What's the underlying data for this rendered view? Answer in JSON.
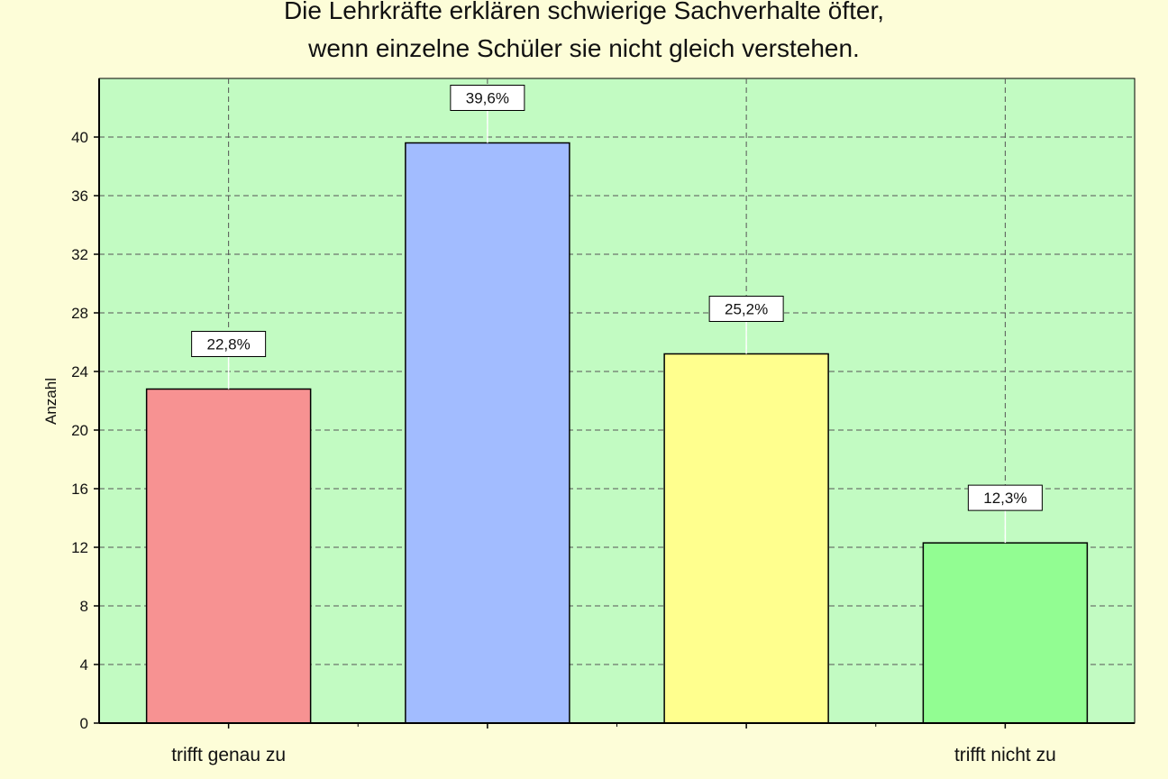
{
  "colors": {
    "page_background": "#fdfdd8",
    "plot_background": "#c2fbc2",
    "grid": "#555555",
    "axis": "#000000"
  },
  "chart_data": {
    "type": "bar",
    "title": [
      "Die Lehrkräfte erklären schwierige Sachverhalte öfter,",
      "wenn einzelne Schüler sie nicht gleich verstehen."
    ],
    "xlabel": "",
    "ylabel": "Anzahl",
    "ylim": [
      0,
      44
    ],
    "yticks": [
      0,
      4,
      8,
      12,
      16,
      20,
      24,
      28,
      32,
      36,
      40
    ],
    "grid": true,
    "categories": [
      "trifft genau zu",
      "",
      "",
      "trifft nicht zu"
    ],
    "values": [
      22.8,
      39.6,
      25.2,
      12.3
    ],
    "data_labels": [
      "22,8%",
      "39,6%",
      "25,2%",
      "12,3%"
    ],
    "bar_colors": [
      "#f79292",
      "#a2bcff",
      "#ffff8e",
      "#92fd92"
    ],
    "legend": "none"
  }
}
